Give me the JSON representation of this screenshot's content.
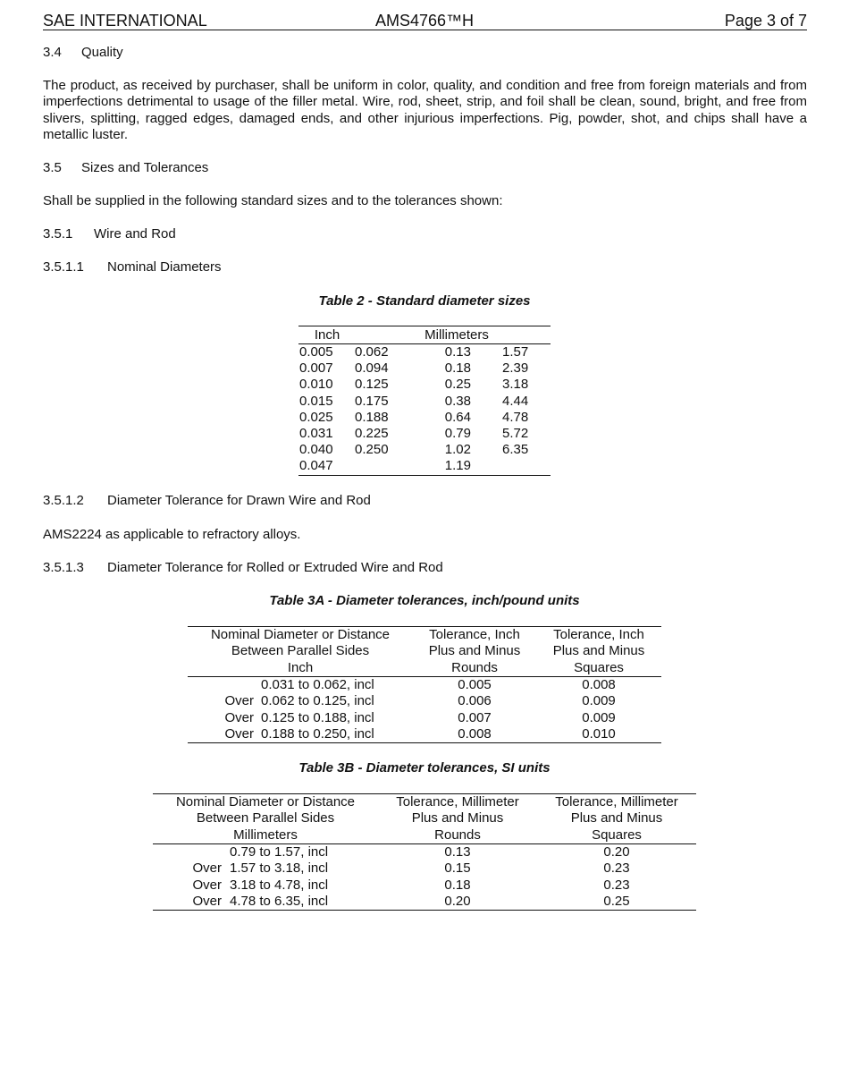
{
  "header": {
    "left": "SAE INTERNATIONAL",
    "center": "AMS4766™H",
    "right": "Page 3 of 7"
  },
  "sections": {
    "s34": {
      "num": "3.4",
      "title": "Quality"
    },
    "s34_text": "The product, as received by purchaser, shall be uniform in color, quality, and condition and free from foreign materials and from imperfections detrimental to usage of the filler metal. Wire, rod, sheet, strip, and foil shall be clean, sound, bright, and free from slivers, splitting, ragged edges, damaged ends, and other injurious imperfections. Pig, powder, shot, and chips shall have a metallic luster.",
    "s35": {
      "num": "3.5",
      "title": "Sizes and Tolerances"
    },
    "s35_text": "Shall be supplied in the following standard sizes and to the tolerances shown:",
    "s351": {
      "num": "3.5.1",
      "title": "Wire and Rod"
    },
    "s3511": {
      "num": "3.5.1.1",
      "title": "Nominal Diameters"
    },
    "s3512": {
      "num": "3.5.1.2",
      "title": "Diameter Tolerance for Drawn Wire and Rod"
    },
    "s3512_text": "AMS2224 as applicable to refractory alloys.",
    "s3513": {
      "num": "3.5.1.3",
      "title": "Diameter Tolerance for Rolled or Extruded Wire and Rod"
    }
  },
  "table2": {
    "caption": "Table 2 - Standard diameter sizes",
    "headers": [
      "Inch",
      "Millimeters"
    ],
    "rows": [
      [
        "0.005",
        "0.062",
        "0.13",
        "1.57"
      ],
      [
        "0.007",
        "0.094",
        "0.18",
        "2.39"
      ],
      [
        "0.010",
        "0.125",
        "0.25",
        "3.18"
      ],
      [
        "0.015",
        "0.175",
        "0.38",
        "4.44"
      ],
      [
        "0.025",
        "0.188",
        "0.64",
        "4.78"
      ],
      [
        "0.031",
        "0.225",
        "0.79",
        "5.72"
      ],
      [
        "0.040",
        "0.250",
        "1.02",
        "6.35"
      ],
      [
        "0.047",
        "",
        "1.19",
        ""
      ]
    ]
  },
  "table3a": {
    "caption": "Table 3A - Diameter tolerances, inch/pound units",
    "headers": [
      [
        "Nominal Diameter or Distance",
        "Between Parallel Sides",
        "Inch"
      ],
      [
        "Tolerance, Inch",
        "Plus and Minus",
        "Rounds"
      ],
      [
        "Tolerance, Inch",
        "Plus and Minus",
        "Squares"
      ]
    ],
    "rows": [
      [
        "",
        "0.031 to 0.062, incl",
        "0.005",
        "0.008"
      ],
      [
        "Over",
        "0.062 to 0.125, incl",
        "0.006",
        "0.009"
      ],
      [
        "Over",
        "0.125 to 0.188, incl",
        "0.007",
        "0.009"
      ],
      [
        "Over",
        "0.188 to 0.250, incl",
        "0.008",
        "0.010"
      ]
    ]
  },
  "table3b": {
    "caption": "Table 3B - Diameter tolerances, SI units",
    "headers": [
      [
        "Nominal Diameter or Distance",
        "Between Parallel Sides",
        "Millimeters"
      ],
      [
        "Tolerance, Millimeter",
        "Plus and Minus",
        "Rounds"
      ],
      [
        "Tolerance, Millimeter",
        "Plus and Minus",
        "Squares"
      ]
    ],
    "rows": [
      [
        "",
        "0.79 to 1.57, incl",
        "0.13",
        "0.20"
      ],
      [
        "Over",
        "1.57 to 3.18, incl",
        "0.15",
        "0.23"
      ],
      [
        "Over",
        "3.18 to 4.78, incl",
        "0.18",
        "0.23"
      ],
      [
        "Over",
        "4.78 to 6.35, incl",
        "0.20",
        "0.25"
      ]
    ]
  }
}
